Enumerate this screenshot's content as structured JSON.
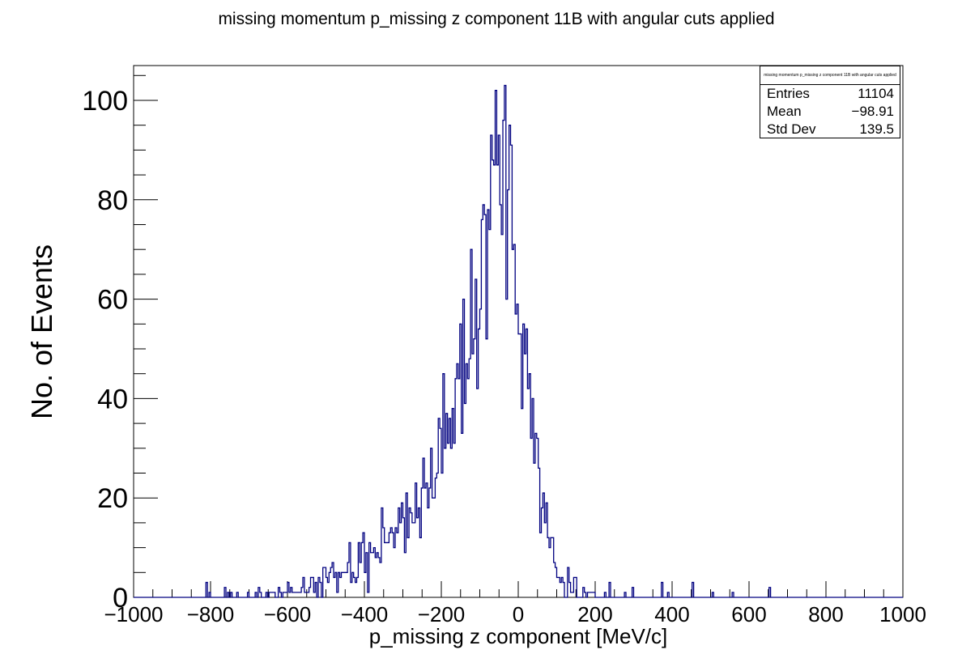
{
  "chart_data": {
    "type": "histogram",
    "title": "missing momentum p_missing z component 11B with angular cuts applied",
    "xlabel": "p_missing z component [MeV/c]",
    "ylabel": "No. of Events",
    "xlim": [
      -1000,
      1000
    ],
    "ylim": [
      0,
      107
    ],
    "bin_width": 4,
    "x_ticks": [
      -1000,
      -800,
      -600,
      -400,
      -200,
      0,
      200,
      400,
      600,
      800,
      1000
    ],
    "x_tick_labels": [
      "−1000",
      "−800",
      "−600",
      "−400",
      "−200",
      "0",
      "200",
      "400",
      "600",
      "800",
      "1000"
    ],
    "y_ticks": [
      0,
      20,
      40,
      60,
      80,
      100
    ],
    "y_tick_labels": [
      "0",
      "20",
      "40",
      "60",
      "80",
      "100"
    ],
    "line_color": "#000080",
    "grid": false,
    "legend": "none",
    "envelope": {
      "x": [
        -1000,
        -900,
        -800,
        -700,
        -650,
        -600,
        -550,
        -500,
        -450,
        -400,
        -350,
        -300,
        -275,
        -250,
        -225,
        -200,
        -175,
        -150,
        -125,
        -100,
        -90,
        -80,
        -70,
        -60,
        -50,
        -40,
        -30,
        -20,
        -10,
        0,
        10,
        20,
        30,
        40,
        50,
        60,
        70,
        80,
        90,
        100,
        110,
        120,
        130,
        140,
        150,
        160,
        175,
        200,
        250,
        300,
        400,
        500,
        1000
      ],
      "y": [
        0,
        0,
        0.1,
        0.3,
        0.6,
        1.2,
        2,
        3.5,
        5.5,
        8,
        11,
        15,
        18,
        21,
        24,
        28,
        33,
        41,
        50,
        60,
        66,
        73,
        80,
        84,
        86,
        85,
        82,
        78,
        72,
        66,
        58,
        50,
        42,
        34,
        27,
        20,
        15,
        10,
        7,
        5,
        4,
        3,
        2.2,
        1.6,
        1.2,
        0.8,
        0.5,
        0.3,
        0.15,
        0.08,
        0.05,
        0.02,
        0
      ]
    },
    "peak_value": 102,
    "peak_x": -58,
    "outlier_bins": [
      {
        "x": -810,
        "y": 3
      },
      {
        "x": -762,
        "y": 2
      },
      {
        "x": -676,
        "y": 2
      },
      {
        "x": -560,
        "y": 4
      },
      {
        "x": -502,
        "y": 6
      },
      {
        "x": 238,
        "y": 3
      },
      {
        "x": 298,
        "y": 2
      },
      {
        "x": 374,
        "y": 3
      },
      {
        "x": 454,
        "y": 3
      },
      {
        "x": 654,
        "y": 2
      }
    ]
  },
  "stats_box": {
    "header": "missing momentum p_missing z component 11B with angular cuts applied",
    "rows": [
      {
        "label": "Entries",
        "value": "11104"
      },
      {
        "label": "Mean",
        "value": "−98.91"
      },
      {
        "label": "Std Dev",
        "value": "139.5"
      }
    ]
  }
}
